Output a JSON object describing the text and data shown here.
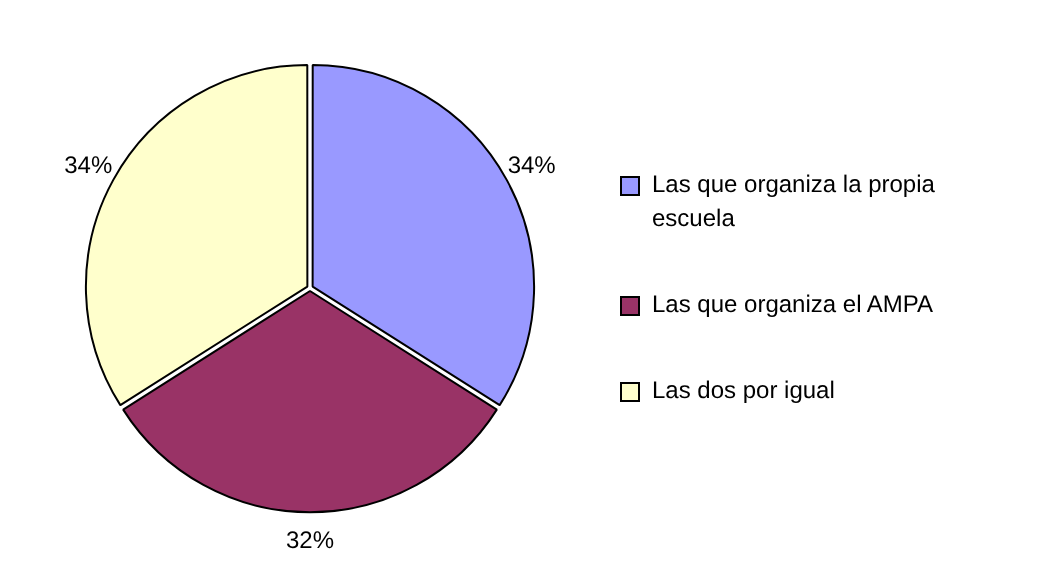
{
  "chart_data": {
    "type": "pie",
    "categories": [
      "Las que organiza la propia escuela",
      "Las que organiza el AMPA",
      "Las dos por igual"
    ],
    "values": [
      34,
      32,
      34
    ],
    "colors": [
      "#9999ff",
      "#993366",
      "#ffffcc"
    ],
    "value_labels": [
      "34%",
      "32%",
      "34%"
    ],
    "legend": "right"
  }
}
